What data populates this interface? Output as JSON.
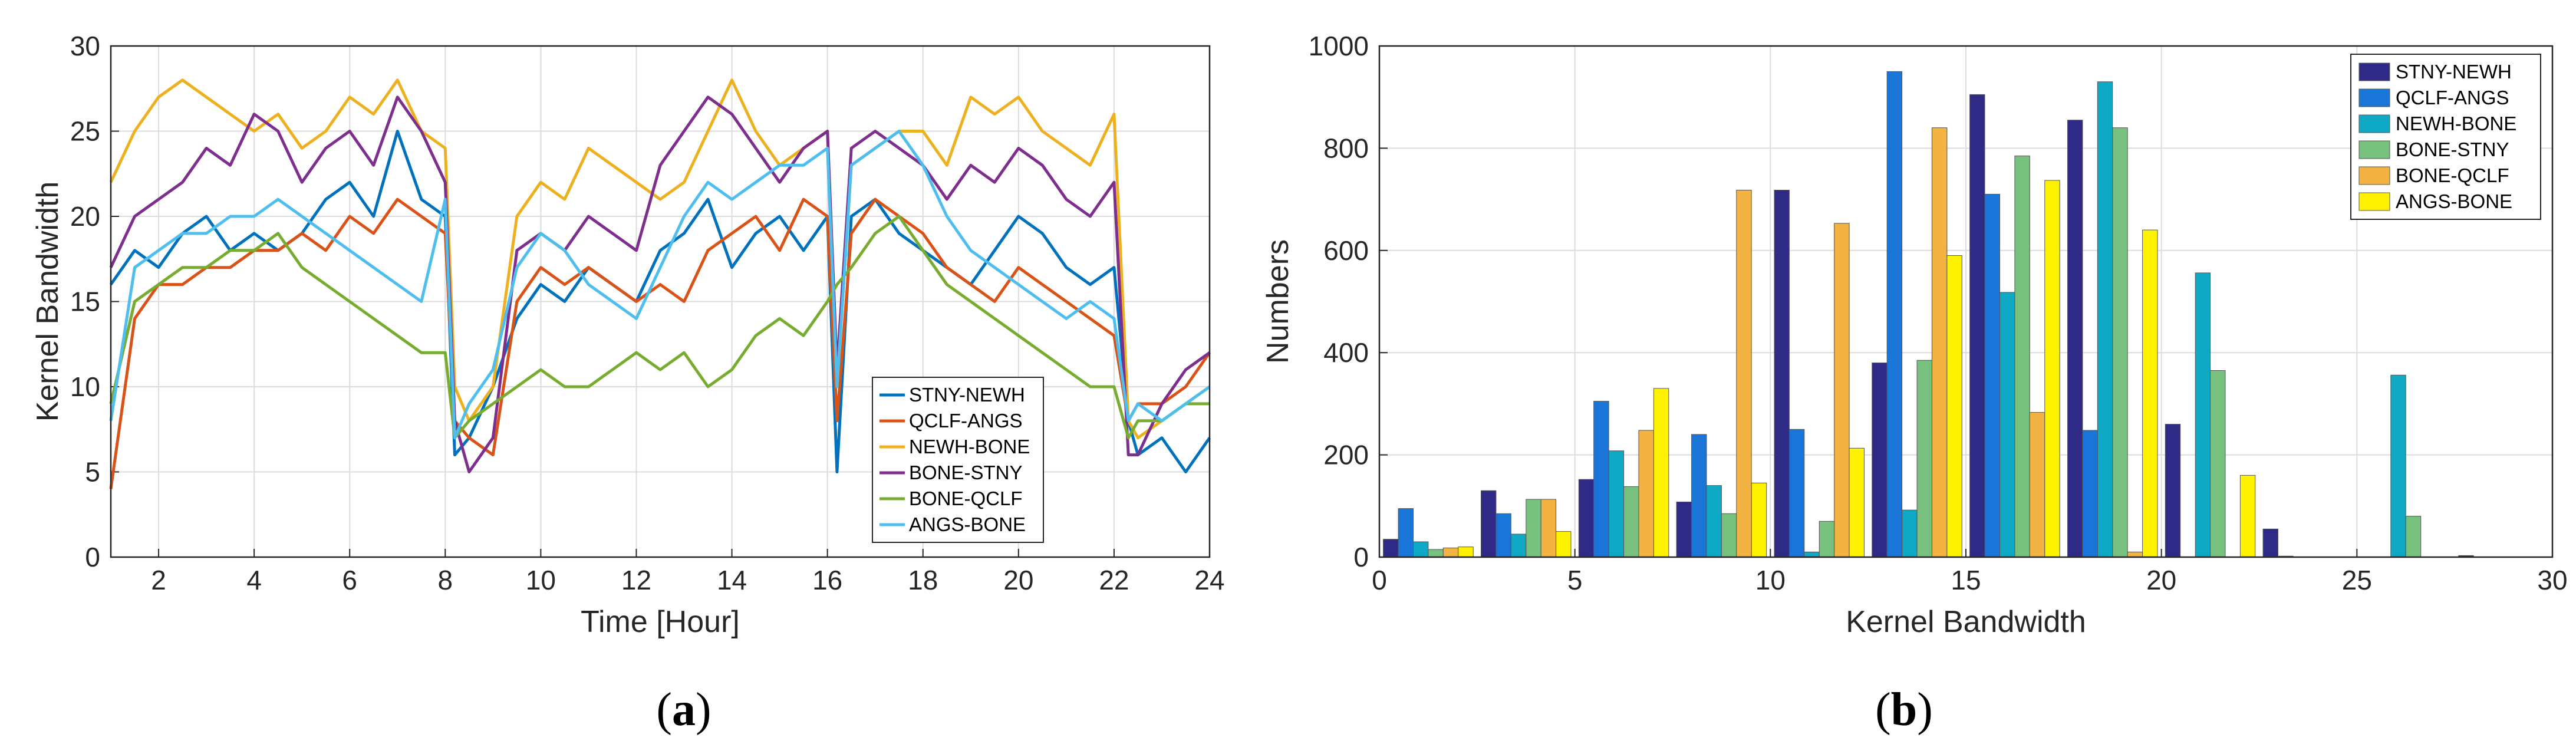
{
  "chart_data": [
    {
      "type": "line",
      "caption": {
        "open": "(",
        "letter": "a",
        "close": ")"
      },
      "xlabel": "Time [Hour]",
      "ylabel": "Kernel Bandwidth",
      "xlim": [
        1,
        24
      ],
      "ylim": [
        0,
        30
      ],
      "xticks": [
        "2",
        "4",
        "6",
        "8",
        "10",
        "12",
        "14",
        "16",
        "18",
        "20",
        "22",
        "24"
      ],
      "yticks": [
        "0",
        "5",
        "10",
        "15",
        "20",
        "25",
        "30"
      ],
      "grid": true,
      "legend_position": "lower-right",
      "x": [
        1,
        1.5,
        2,
        2.5,
        3,
        3.5,
        4,
        4.5,
        5,
        5.5,
        6,
        6.5,
        7,
        7.5,
        8,
        8.2,
        8.5,
        9,
        9.5,
        10,
        10.5,
        11,
        11.5,
        12,
        12.5,
        13,
        13.5,
        14,
        14.5,
        15,
        15.5,
        16,
        16.2,
        16.5,
        17,
        17.5,
        18,
        18.5,
        19,
        19.5,
        20,
        20.5,
        21,
        21.5,
        22,
        22.3,
        22.5,
        23,
        23.5,
        24
      ],
      "series": [
        {
          "name": "STNY-NEWH",
          "color": "#0072BD",
          "values": [
            16,
            18,
            17,
            19,
            20,
            18,
            19,
            18,
            19,
            21,
            22,
            20,
            25,
            21,
            20,
            6,
            7,
            10,
            14,
            16,
            15,
            17,
            16,
            15,
            18,
            19,
            21,
            17,
            19,
            20,
            18,
            20,
            5,
            20,
            21,
            19,
            18,
            17,
            16,
            18,
            20,
            19,
            17,
            16,
            17,
            8,
            6,
            7,
            5,
            7
          ]
        },
        {
          "name": "QCLF-ANGS",
          "color": "#D95319",
          "values": [
            4,
            14,
            16,
            16,
            17,
            17,
            18,
            18,
            19,
            18,
            20,
            19,
            21,
            20,
            19,
            8,
            7,
            6,
            15,
            17,
            16,
            17,
            16,
            15,
            16,
            15,
            18,
            19,
            20,
            18,
            21,
            20,
            8,
            19,
            21,
            20,
            19,
            17,
            16,
            15,
            17,
            16,
            15,
            14,
            13,
            8,
            9,
            9,
            10,
            12
          ]
        },
        {
          "name": "NEWH-BONE",
          "color": "#EDB120",
          "values": [
            22,
            25,
            27,
            28,
            27,
            26,
            25,
            26,
            24,
            25,
            27,
            26,
            28,
            25,
            24,
            10,
            8,
            10,
            20,
            22,
            21,
            24,
            23,
            22,
            21,
            22,
            25,
            28,
            25,
            23,
            24,
            25,
            10,
            23,
            24,
            25,
            25,
            23,
            27,
            26,
            27,
            25,
            24,
            23,
            26,
            8,
            7,
            8,
            9,
            10
          ]
        },
        {
          "name": "BONE-STNY",
          "color": "#7E2F8E",
          "values": [
            17,
            20,
            21,
            22,
            24,
            23,
            26,
            25,
            22,
            24,
            25,
            23,
            27,
            25,
            22,
            8,
            5,
            7,
            18,
            19,
            18,
            20,
            19,
            18,
            23,
            25,
            27,
            26,
            24,
            22,
            24,
            25,
            11,
            24,
            25,
            24,
            23,
            21,
            23,
            22,
            24,
            23,
            21,
            20,
            22,
            6,
            6,
            9,
            11,
            12
          ]
        },
        {
          "name": "BONE-QCLF",
          "color": "#77AC30",
          "values": [
            9,
            15,
            16,
            17,
            17,
            18,
            18,
            19,
            17,
            16,
            15,
            14,
            13,
            12,
            12,
            7,
            8,
            9,
            10,
            11,
            10,
            10,
            11,
            12,
            11,
            12,
            10,
            11,
            13,
            14,
            13,
            15,
            16,
            17,
            19,
            20,
            18,
            16,
            15,
            14,
            13,
            12,
            11,
            10,
            10,
            7,
            8,
            8,
            9,
            9
          ]
        },
        {
          "name": "ANGS-BONE",
          "color": "#4DBEEE",
          "values": [
            8,
            17,
            18,
            19,
            19,
            20,
            20,
            21,
            20,
            19,
            18,
            17,
            16,
            15,
            21,
            7,
            9,
            11,
            17,
            19,
            18,
            16,
            15,
            14,
            17,
            20,
            22,
            21,
            22,
            23,
            23,
            24,
            10,
            23,
            24,
            25,
            23,
            20,
            18,
            17,
            16,
            15,
            14,
            15,
            14,
            8,
            9,
            8,
            9,
            10
          ]
        }
      ]
    },
    {
      "type": "bar",
      "caption": {
        "open": "(",
        "letter": "b",
        "close": ")"
      },
      "xlabel": "Kernel Bandwidth",
      "ylabel": "Numbers",
      "xlim": [
        0,
        30
      ],
      "ylim": [
        0,
        1000
      ],
      "xticks": [
        "0",
        "5",
        "10",
        "15",
        "20",
        "25",
        "30"
      ],
      "yticks": [
        "0",
        "200",
        "400",
        "600",
        "800",
        "1000"
      ],
      "grid": true,
      "legend_position": "top-right",
      "bin_centers": [
        1.25,
        3.75,
        6.25,
        8.75,
        11.25,
        13.75,
        16.25,
        18.75,
        21.25,
        23.75,
        26.25,
        28.75
      ],
      "series": [
        {
          "name": "STNY-NEWH",
          "color": "#2E2A86",
          "values": [
            35,
            130,
            152,
            108,
            718,
            380,
            905,
            855,
            260,
            55,
            0,
            3
          ]
        },
        {
          "name": "QCLF-ANGS",
          "color": "#1976D8",
          "values": [
            95,
            85,
            305,
            240,
            250,
            950,
            710,
            248,
            0,
            2,
            0,
            0
          ]
        },
        {
          "name": "NEWH-BONE",
          "color": "#0FA9C5",
          "values": [
            30,
            45,
            208,
            140,
            10,
            92,
            518,
            930,
            556,
            0,
            356,
            0
          ]
        },
        {
          "name": "BONE-STNY",
          "color": "#78C07E",
          "values": [
            15,
            113,
            138,
            85,
            70,
            385,
            785,
            840,
            365,
            0,
            80,
            0
          ]
        },
        {
          "name": "BONE-QCLF",
          "color": "#F3B343",
          "values": [
            18,
            113,
            248,
            718,
            653,
            840,
            283,
            10,
            0,
            0,
            0,
            0
          ]
        },
        {
          "name": "ANGS-BONE",
          "color": "#FFF200",
          "values": [
            20,
            50,
            330,
            145,
            213,
            590,
            737,
            640,
            160,
            0,
            0,
            0
          ]
        }
      ]
    }
  ]
}
